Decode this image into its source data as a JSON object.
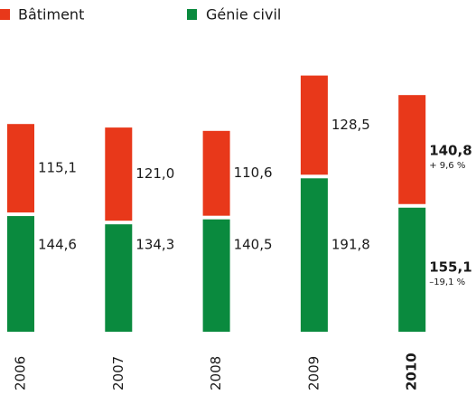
{
  "chart_data": {
    "type": "stacked-bar",
    "categories": [
      "2006",
      "2007",
      "2008",
      "2009",
      "2010"
    ],
    "series": [
      {
        "name": "Génie civil",
        "color": "#0a8a3e",
        "values": [
          144.6,
          134.3,
          140.5,
          191.8,
          155.1
        ],
        "value_labels": [
          "144,6",
          "134,3",
          "140,5",
          "191,8",
          "155,1"
        ]
      },
      {
        "name": "Bâtiment",
        "color": "#e8381a",
        "values": [
          115.1,
          121.0,
          110.6,
          128.5,
          140.8
        ],
        "value_labels": [
          "115,1",
          "121,0",
          "110,6",
          "128,5",
          "140,8"
        ]
      }
    ],
    "annotations": [
      "–19,1 %",
      "+ 9,6 %"
    ],
    "ylim": [
      0,
      330
    ]
  }
}
